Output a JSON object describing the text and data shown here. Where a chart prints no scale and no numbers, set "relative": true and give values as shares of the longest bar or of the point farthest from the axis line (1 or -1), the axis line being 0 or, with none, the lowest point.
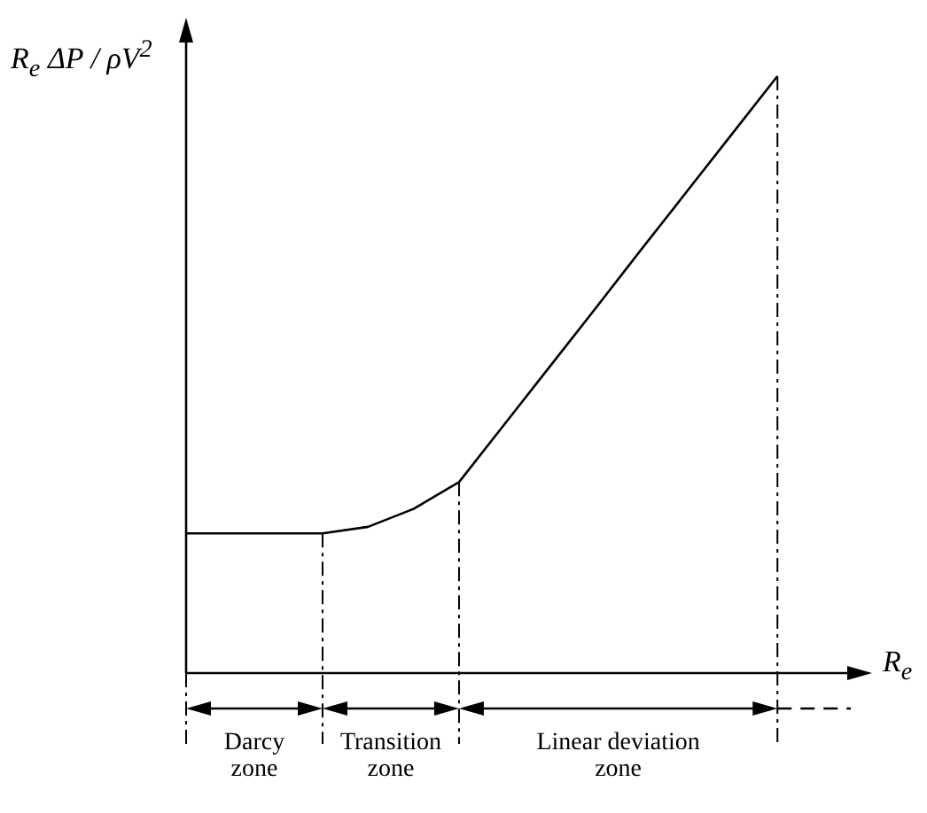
{
  "chart_data": {
    "type": "line",
    "relative": true,
    "xlabel": "R$_{e}$",
    "ylabel": "R$_{e}$ ΔP / ρV$^{2}$",
    "color": "#000000",
    "marker": "none",
    "line_style": "solid",
    "legend": false,
    "categories": [
      null,
      null,
      null,
      null,
      null,
      null,
      null,
      null,
      null,
      null,
      null,
      null,
      null,
      null
    ],
    "values": [
      0.234,
      0.234,
      0.234,
      0.234,
      0.245,
      0.275,
      0.32,
      0.417,
      0.514,
      0.611,
      0.709,
      0.806,
      0.903,
      1
    ],
    "annotations": [
      "Darcy zone",
      "Transition zone",
      "Linear deviation zone"
    ]
  }
}
